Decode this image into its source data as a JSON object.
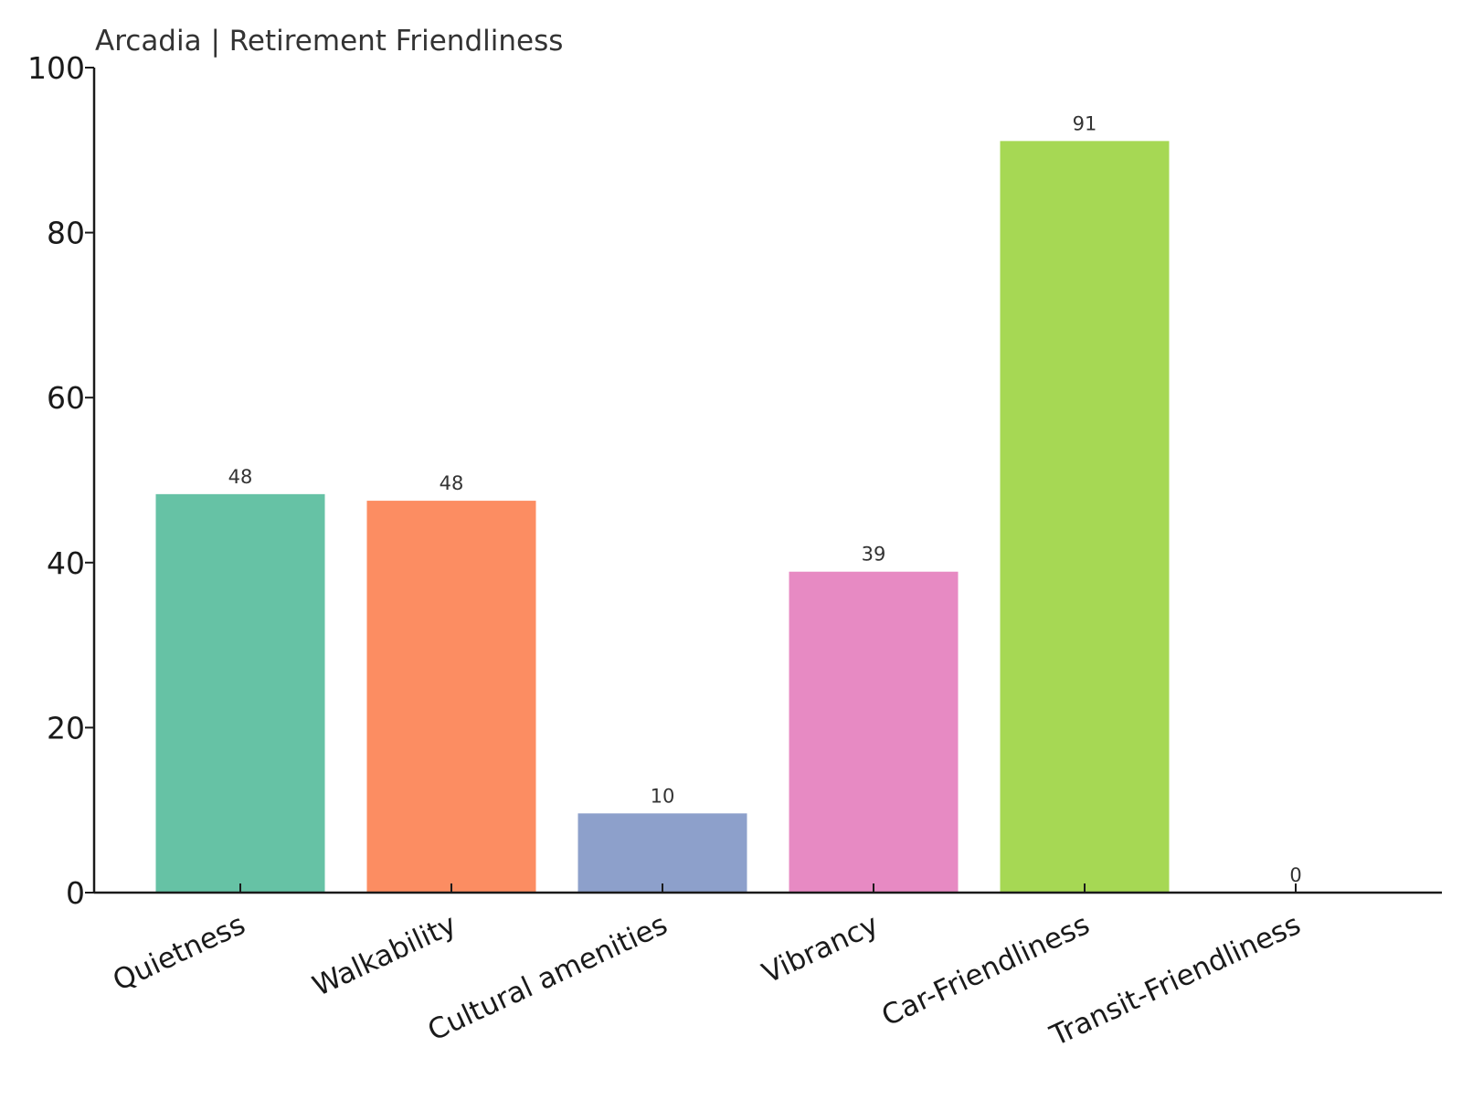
{
  "chart_data": {
    "type": "bar",
    "title": "Arcadia | Retirement Friendliness",
    "xlabel": "",
    "ylabel": "",
    "categories": [
      "Quietness",
      "Walkability",
      "Cultural amenities",
      "Vibrancy",
      "Car-Friendliness",
      "Transit-Friendliness"
    ],
    "values": [
      48.3,
      47.5,
      9.6,
      38.9,
      91.1,
      0
    ],
    "data_labels": [
      "48",
      "48",
      "10",
      "39",
      "91",
      "0"
    ],
    "colors": [
      "#66c2a5",
      "#fc8d62",
      "#8da0cb",
      "#e78ac3",
      "#a6d854",
      "#ffd92f"
    ],
    "ylim": [
      0,
      100
    ],
    "yticks": [
      0,
      20,
      40,
      60,
      80,
      100
    ],
    "grid": false,
    "legend": "none"
  }
}
